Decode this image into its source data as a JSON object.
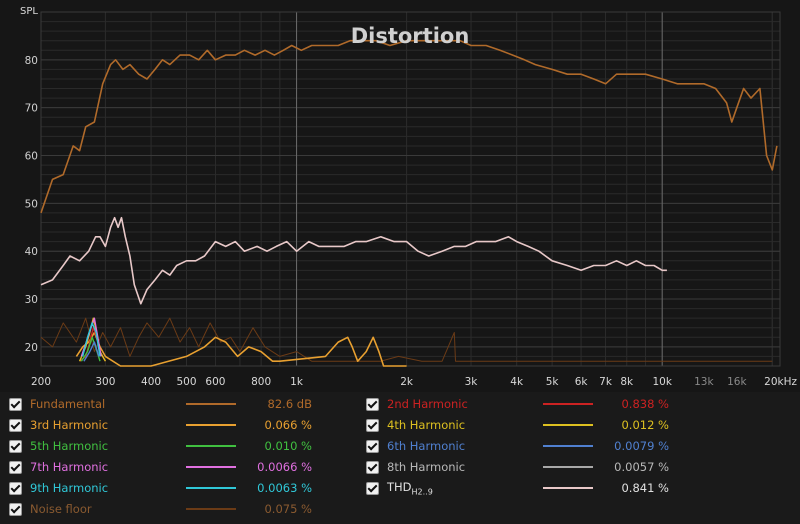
{
  "chart_data": {
    "type": "line",
    "title": "Distortion",
    "ylabel": "SPL",
    "xlabel_unit": "kHz",
    "x_scale": "log",
    "xlim": [
      200,
      21000
    ],
    "ylim": [
      16,
      90
    ],
    "x_ticks": [
      200,
      300,
      400,
      500,
      600,
      800,
      1000,
      2000,
      3000,
      4000,
      5000,
      6000,
      7000,
      8000,
      10000,
      13000,
      16000,
      20000
    ],
    "x_tick_labels": [
      "200",
      "300",
      "400",
      "500",
      "600",
      "800",
      "1k",
      "2k",
      "3k",
      "4k",
      "5k",
      "6k",
      "7k",
      "8k",
      "10k",
      "13k",
      "16k",
      "20kHz"
    ],
    "y_ticks": [
      20,
      30,
      40,
      50,
      60,
      70,
      80
    ],
    "y_tick_labels": [
      "20",
      "30",
      "40",
      "50",
      "60",
      "70",
      "80"
    ],
    "series": [
      {
        "name": "Fundamental",
        "color": "#b06a2a",
        "width": 1.6,
        "points": [
          [
            200,
            48
          ],
          [
            215,
            55
          ],
          [
            230,
            56
          ],
          [
            245,
            62
          ],
          [
            255,
            61
          ],
          [
            265,
            66
          ],
          [
            280,
            67
          ],
          [
            295,
            75
          ],
          [
            310,
            79
          ],
          [
            320,
            80
          ],
          [
            335,
            78
          ],
          [
            350,
            79
          ],
          [
            370,
            77
          ],
          [
            390,
            76
          ],
          [
            410,
            78
          ],
          [
            430,
            80
          ],
          [
            450,
            79
          ],
          [
            480,
            81
          ],
          [
            510,
            81
          ],
          [
            540,
            80
          ],
          [
            570,
            82
          ],
          [
            600,
            80
          ],
          [
            640,
            81
          ],
          [
            680,
            81
          ],
          [
            720,
            82
          ],
          [
            770,
            81
          ],
          [
            820,
            82
          ],
          [
            870,
            81
          ],
          [
            920,
            82
          ],
          [
            970,
            83
          ],
          [
            1030,
            82
          ],
          [
            1100,
            83
          ],
          [
            1200,
            83
          ],
          [
            1300,
            83
          ],
          [
            1400,
            84
          ],
          [
            1500,
            84
          ],
          [
            1650,
            84
          ],
          [
            1800,
            83
          ],
          [
            2000,
            84
          ],
          [
            2200,
            84
          ],
          [
            2400,
            84
          ],
          [
            2600,
            84
          ],
          [
            2800,
            84
          ],
          [
            3000,
            83
          ],
          [
            3300,
            83
          ],
          [
            3600,
            82
          ],
          [
            3900,
            81
          ],
          [
            4200,
            80
          ],
          [
            4500,
            79
          ],
          [
            5000,
            78
          ],
          [
            5500,
            77
          ],
          [
            6000,
            77
          ],
          [
            6500,
            76
          ],
          [
            7000,
            75
          ],
          [
            7500,
            77
          ],
          [
            8000,
            77
          ],
          [
            9000,
            77
          ],
          [
            10000,
            76
          ],
          [
            11000,
            75
          ],
          [
            12000,
            75
          ],
          [
            13000,
            75
          ],
          [
            14000,
            74
          ],
          [
            15000,
            71
          ],
          [
            15500,
            67
          ],
          [
            16000,
            70
          ],
          [
            16700,
            74
          ],
          [
            17500,
            72
          ],
          [
            18500,
            74
          ],
          [
            19300,
            60
          ],
          [
            20000,
            57
          ],
          [
            20600,
            62
          ]
        ]
      },
      {
        "name": "THD",
        "color": "#e8c8c8",
        "width": 1.6,
        "points": [
          [
            200,
            33
          ],
          [
            215,
            34
          ],
          [
            230,
            37
          ],
          [
            240,
            39
          ],
          [
            255,
            38
          ],
          [
            270,
            40
          ],
          [
            282,
            43
          ],
          [
            290,
            43
          ],
          [
            300,
            41
          ],
          [
            310,
            45
          ],
          [
            318,
            47
          ],
          [
            325,
            45
          ],
          [
            332,
            47
          ],
          [
            340,
            43
          ],
          [
            350,
            39
          ],
          [
            360,
            33
          ],
          [
            375,
            29
          ],
          [
            390,
            32
          ],
          [
            410,
            34
          ],
          [
            430,
            36
          ],
          [
            450,
            35
          ],
          [
            470,
            37
          ],
          [
            500,
            38
          ],
          [
            530,
            38
          ],
          [
            560,
            39
          ],
          [
            600,
            42
          ],
          [
            640,
            41
          ],
          [
            680,
            42
          ],
          [
            720,
            40
          ],
          [
            780,
            41
          ],
          [
            830,
            40
          ],
          [
            880,
            41
          ],
          [
            940,
            42
          ],
          [
            1000,
            40
          ],
          [
            1080,
            42
          ],
          [
            1150,
            41
          ],
          [
            1250,
            41
          ],
          [
            1350,
            41
          ],
          [
            1450,
            42
          ],
          [
            1550,
            42
          ],
          [
            1700,
            43
          ],
          [
            1850,
            42
          ],
          [
            2000,
            42
          ],
          [
            2150,
            40
          ],
          [
            2300,
            39
          ],
          [
            2500,
            40
          ],
          [
            2700,
            41
          ],
          [
            2900,
            41
          ],
          [
            3100,
            42
          ],
          [
            3300,
            42
          ],
          [
            3500,
            42
          ],
          [
            3800,
            43
          ],
          [
            4000,
            42
          ],
          [
            4300,
            41
          ],
          [
            4600,
            40
          ],
          [
            5000,
            38
          ],
          [
            5500,
            37
          ],
          [
            6000,
            36
          ],
          [
            6500,
            37
          ],
          [
            7000,
            37
          ],
          [
            7500,
            38
          ],
          [
            8000,
            37
          ],
          [
            8500,
            38
          ],
          [
            9000,
            37
          ],
          [
            9500,
            37
          ],
          [
            10000,
            36
          ],
          [
            10300,
            36
          ]
        ]
      },
      {
        "name": "Noise floor",
        "color": "#6b3b16",
        "width": 1.0,
        "points": [
          [
            200,
            22
          ],
          [
            215,
            20
          ],
          [
            230,
            25
          ],
          [
            250,
            21
          ],
          [
            265,
            26
          ],
          [
            280,
            19
          ],
          [
            295,
            23
          ],
          [
            310,
            20
          ],
          [
            330,
            24
          ],
          [
            350,
            18
          ],
          [
            370,
            22
          ],
          [
            390,
            25
          ],
          [
            420,
            22
          ],
          [
            450,
            26
          ],
          [
            480,
            21
          ],
          [
            510,
            24
          ],
          [
            540,
            20
          ],
          [
            580,
            25
          ],
          [
            620,
            21
          ],
          [
            660,
            22
          ],
          [
            700,
            19
          ],
          [
            760,
            24
          ],
          [
            820,
            20
          ],
          [
            900,
            18
          ],
          [
            1000,
            19
          ],
          [
            1100,
            17
          ],
          [
            1300,
            17
          ],
          [
            1500,
            17
          ],
          [
            1700,
            17
          ],
          [
            1900,
            18
          ],
          [
            2200,
            17
          ],
          [
            2500,
            17
          ],
          [
            2700,
            23
          ],
          [
            2720,
            17
          ],
          [
            3000,
            17
          ],
          [
            4000,
            17
          ],
          [
            6000,
            17
          ],
          [
            10000,
            17
          ],
          [
            20000,
            17
          ]
        ]
      },
      {
        "name": "3rd Harmonic",
        "color": "#e8a030",
        "width": 1.6,
        "points": [
          [
            250,
            18
          ],
          [
            260,
            20
          ],
          [
            270,
            21
          ],
          [
            280,
            23
          ],
          [
            290,
            20
          ],
          [
            300,
            18
          ],
          [
            330,
            16
          ],
          [
            400,
            16
          ],
          [
            500,
            18
          ],
          [
            560,
            20
          ],
          [
            600,
            22
          ],
          [
            640,
            21
          ],
          [
            690,
            18
          ],
          [
            740,
            20
          ],
          [
            800,
            19
          ],
          [
            860,
            17
          ],
          [
            900,
            17
          ],
          [
            1200,
            18
          ],
          [
            1300,
            21
          ],
          [
            1380,
            22
          ],
          [
            1420,
            20
          ],
          [
            1470,
            17
          ],
          [
            1550,
            19
          ],
          [
            1620,
            22
          ],
          [
            1680,
            19
          ],
          [
            1730,
            16
          ],
          [
            2000,
            16
          ]
        ]
      },
      {
        "name": "2nd Harmonic",
        "color": "#cc2222",
        "width": 1.4,
        "points": [
          [
            255,
            17
          ],
          [
            265,
            18
          ],
          [
            272,
            21
          ],
          [
            278,
            24
          ],
          [
            284,
            22
          ],
          [
            290,
            19
          ],
          [
            300,
            17
          ]
        ]
      },
      {
        "name": "4th Harmonic",
        "color": "#ddc020",
        "width": 1.4,
        "points": [
          [
            255,
            17
          ],
          [
            265,
            20
          ],
          [
            272,
            23
          ],
          [
            278,
            26
          ],
          [
            284,
            23
          ],
          [
            290,
            19
          ],
          [
            300,
            17
          ]
        ]
      },
      {
        "name": "5th Harmonic",
        "color": "#40c040",
        "width": 1.4,
        "points": [
          [
            258,
            17
          ],
          [
            268,
            19
          ],
          [
            276,
            22
          ],
          [
            282,
            20
          ],
          [
            290,
            17
          ]
        ]
      },
      {
        "name": "7th Harmonic",
        "color": "#e070e0",
        "width": 1.4,
        "points": [
          [
            258,
            18
          ],
          [
            266,
            21
          ],
          [
            274,
            24
          ],
          [
            280,
            26
          ],
          [
            286,
            22
          ],
          [
            292,
            18
          ]
        ]
      },
      {
        "name": "9th Harmonic",
        "color": "#30c8d8",
        "width": 1.4,
        "points": [
          [
            260,
            18
          ],
          [
            268,
            22
          ],
          [
            276,
            25
          ],
          [
            283,
            23
          ],
          [
            290,
            18
          ]
        ]
      },
      {
        "name": "6th Harmonic",
        "color": "#5080d0",
        "width": 1.4,
        "points": [
          [
            262,
            17
          ],
          [
            272,
            19
          ],
          [
            280,
            21
          ],
          [
            288,
            18
          ]
        ]
      }
    ]
  },
  "legend": {
    "left": [
      {
        "name": "Fundamental",
        "value": "82.6 dB",
        "color": "#b06a2a"
      },
      {
        "name": "3rd Harmonic",
        "value": "0.066 %",
        "color": "#e8a030"
      },
      {
        "name": "5th Harmonic",
        "value": "0.010 %",
        "color": "#40c040"
      },
      {
        "name": "7th Harmonic",
        "value": "0.0066 %",
        "color": "#e070e0"
      },
      {
        "name": "9th Harmonic",
        "value": "0.0063 %",
        "color": "#30c8d8"
      },
      {
        "name": "Noise floor",
        "value": "0.075 %",
        "color": "#6b3b16"
      }
    ],
    "right": [
      {
        "name": "2nd Harmonic",
        "value": "0.838 %",
        "color": "#cc2222"
      },
      {
        "name": "4th Harmonic",
        "value": "0.012 %",
        "color": "#ddc020"
      },
      {
        "name": "6th Harmonic",
        "value": "0.0079 %",
        "color": "#5080d0"
      },
      {
        "name": "8th Harmonic",
        "value": "0.0057 %",
        "color": "#a8a8a8"
      },
      {
        "name": "THD",
        "sub": "H2..9",
        "value": "0.841 %",
        "color": "#e8c8c8"
      }
    ]
  }
}
